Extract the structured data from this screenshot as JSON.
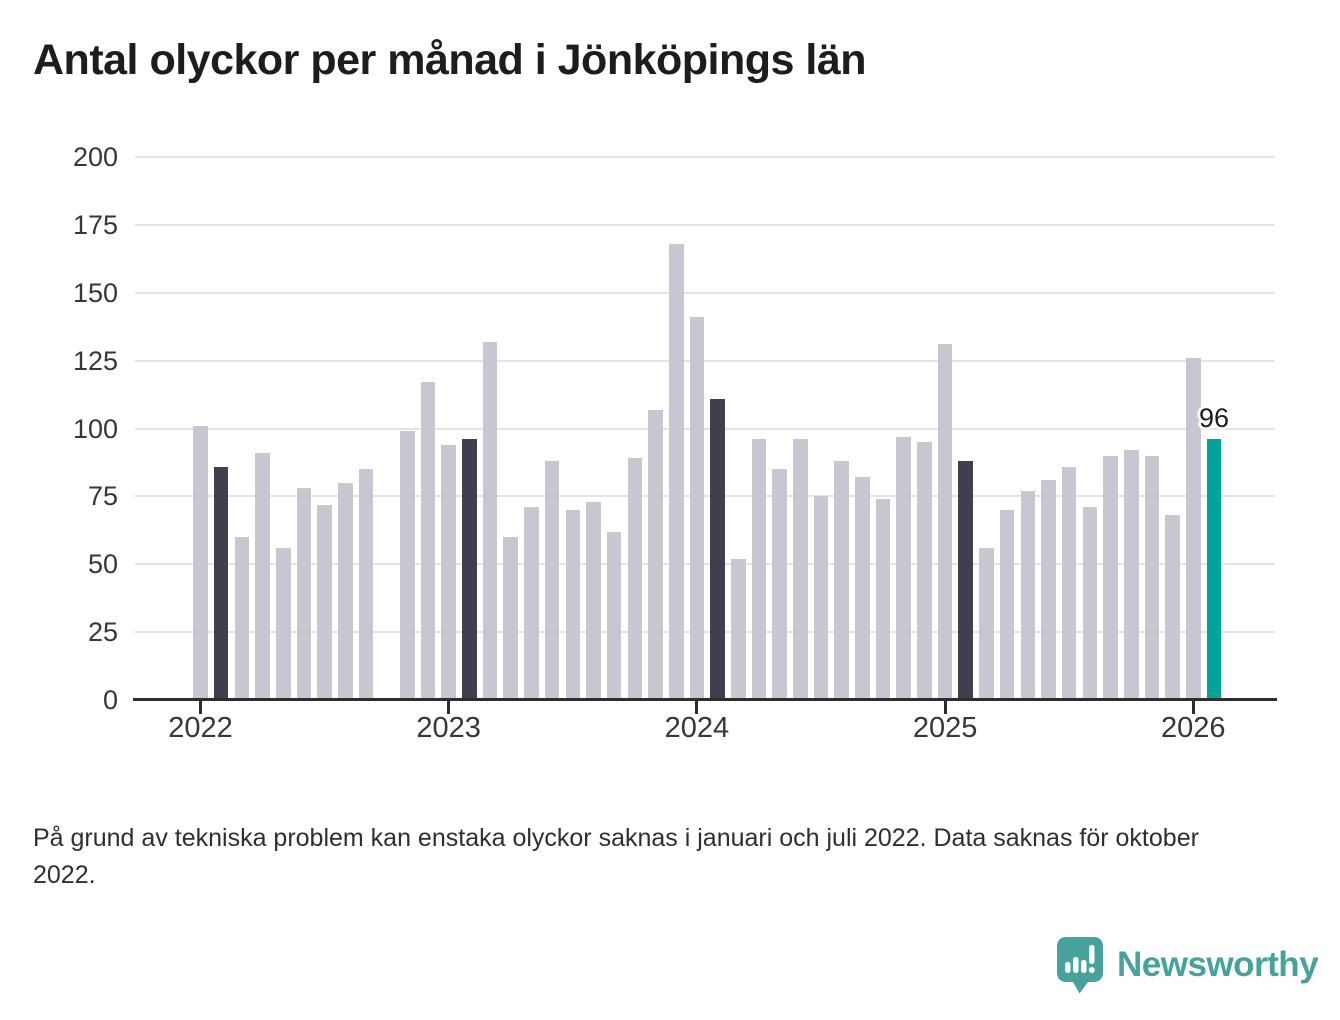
{
  "title": "Antal olyckor per månad i Jönköpings län",
  "footnote": "På grund av tekniska problem kan enstaka olyckor saknas i januari och juli 2022. Data saknas för oktober 2022.",
  "logo": {
    "text": "Newsworthy",
    "icon": "newsworthy-speech-bubble-barchart-icon"
  },
  "colors": {
    "bar_default": "#c7c6d1",
    "bar_highlight": "#413f4e",
    "bar_current": "#00a49a",
    "grid": "#e3e3e3",
    "axis": "#2d2d2d",
    "title_text": "#1d1d1b",
    "logo_teal": "#46a29b"
  },
  "chart_data": {
    "type": "bar",
    "title": "Antal olyckor per månad i Jönköpings län",
    "xlabel": "",
    "ylabel": "",
    "ylim": [
      0,
      200
    ],
    "yticks": [
      0,
      25,
      50,
      75,
      100,
      125,
      150,
      175,
      200
    ],
    "year_ticks": [
      2022,
      2023,
      2024,
      2025,
      2026
    ],
    "grid": true,
    "legend": "none",
    "missing_months": [
      "2022-10"
    ],
    "annotation": {
      "month": "2026-02",
      "text": "96"
    },
    "points": [
      {
        "month": "2022-01",
        "value": 101
      },
      {
        "month": "2022-02",
        "value": 86,
        "highlight": true
      },
      {
        "month": "2022-03",
        "value": 60
      },
      {
        "month": "2022-04",
        "value": 91
      },
      {
        "month": "2022-05",
        "value": 56
      },
      {
        "month": "2022-06",
        "value": 78
      },
      {
        "month": "2022-07",
        "value": 72
      },
      {
        "month": "2022-08",
        "value": 80
      },
      {
        "month": "2022-09",
        "value": 85
      },
      {
        "month": "2022-10",
        "value": null
      },
      {
        "month": "2022-11",
        "value": 99
      },
      {
        "month": "2022-12",
        "value": 117
      },
      {
        "month": "2023-01",
        "value": 94
      },
      {
        "month": "2023-02",
        "value": 96,
        "highlight": true
      },
      {
        "month": "2023-03",
        "value": 132
      },
      {
        "month": "2023-04",
        "value": 60
      },
      {
        "month": "2023-05",
        "value": 71
      },
      {
        "month": "2023-06",
        "value": 88
      },
      {
        "month": "2023-07",
        "value": 70
      },
      {
        "month": "2023-08",
        "value": 73
      },
      {
        "month": "2023-09",
        "value": 62
      },
      {
        "month": "2023-10",
        "value": 89
      },
      {
        "month": "2023-11",
        "value": 107
      },
      {
        "month": "2023-12",
        "value": 168
      },
      {
        "month": "2024-01",
        "value": 141
      },
      {
        "month": "2024-02",
        "value": 111,
        "highlight": true
      },
      {
        "month": "2024-03",
        "value": 52
      },
      {
        "month": "2024-04",
        "value": 96
      },
      {
        "month": "2024-05",
        "value": 85
      },
      {
        "month": "2024-06",
        "value": 96
      },
      {
        "month": "2024-07",
        "value": 75
      },
      {
        "month": "2024-08",
        "value": 88
      },
      {
        "month": "2024-09",
        "value": 82
      },
      {
        "month": "2024-10",
        "value": 74
      },
      {
        "month": "2024-11",
        "value": 97
      },
      {
        "month": "2024-12",
        "value": 95
      },
      {
        "month": "2025-01",
        "value": 131
      },
      {
        "month": "2025-02",
        "value": 88,
        "highlight": true
      },
      {
        "month": "2025-03",
        "value": 56
      },
      {
        "month": "2025-04",
        "value": 70
      },
      {
        "month": "2025-05",
        "value": 77
      },
      {
        "month": "2025-06",
        "value": 81
      },
      {
        "month": "2025-07",
        "value": 86
      },
      {
        "month": "2025-08",
        "value": 71
      },
      {
        "month": "2025-09",
        "value": 90
      },
      {
        "month": "2025-10",
        "value": 92
      },
      {
        "month": "2025-11",
        "value": 90
      },
      {
        "month": "2025-12",
        "value": 68
      },
      {
        "month": "2026-01",
        "value": 126
      },
      {
        "month": "2026-02",
        "value": 96,
        "current": true,
        "label": "96"
      }
    ]
  }
}
